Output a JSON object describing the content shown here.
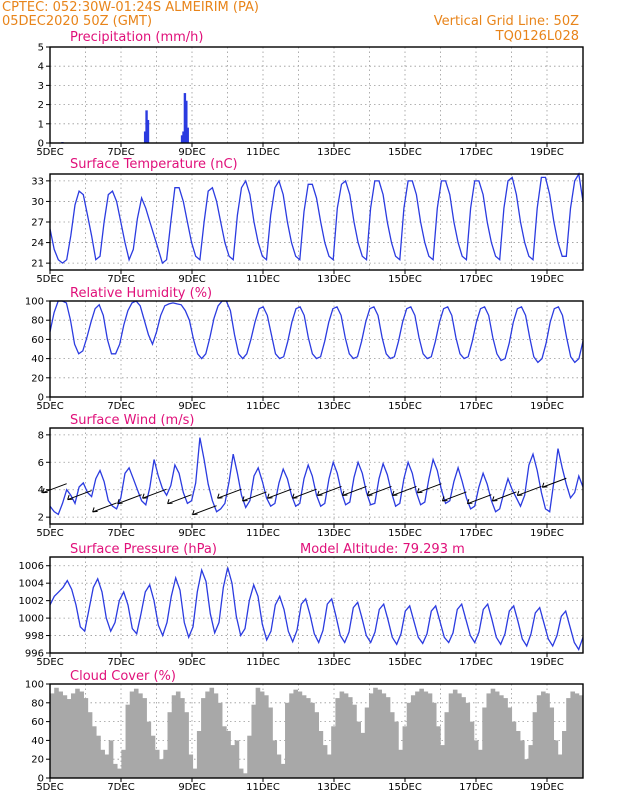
{
  "header": {
    "line1_left": "CPTEC:   052:30W-01:24S   ALMEIRIM (PA)",
    "line2_left": "05DEC2020 50Z (GMT)",
    "line1_right": "Vertical Grid Line: 50Z",
    "line2_right": "TQ0126L028"
  },
  "colors": {
    "header": "#e8841a",
    "panel_title": "#e0107a",
    "series_line": "#2b3be0",
    "cloud_fill": "#a8a8a8",
    "precip_bar": "#2b3be0",
    "wind_barb": "#000000"
  },
  "chart_data": [
    {
      "type": "bar",
      "title": "Precipitation (mm/h)",
      "x_labels": [
        "5DEC",
        "7DEC",
        "9DEC",
        "11DEC",
        "13DEC",
        "15DEC",
        "17DEC",
        "19DEC"
      ],
      "ylim": [
        0,
        5
      ],
      "yticks": [
        0,
        1,
        2,
        3,
        4,
        5
      ],
      "grid": true,
      "bars": [
        {
          "x": 0.35,
          "value": 0.05
        },
        {
          "x": 1.12,
          "value": 0.03
        },
        {
          "x": 2.68,
          "value": 0.6
        },
        {
          "x": 2.72,
          "value": 1.7
        },
        {
          "x": 2.76,
          "value": 1.2
        },
        {
          "x": 3.72,
          "value": 0.4
        },
        {
          "x": 3.76,
          "value": 0.6
        },
        {
          "x": 3.8,
          "value": 2.6
        },
        {
          "x": 3.84,
          "value": 2.2
        },
        {
          "x": 3.88,
          "value": 0.8
        }
      ]
    },
    {
      "type": "line",
      "title": "Surface Temperature (nC)",
      "x_labels": [
        "5DEC",
        "7DEC",
        "9DEC",
        "11DEC",
        "13DEC",
        "15DEC",
        "17DEC",
        "19DEC"
      ],
      "ylim": [
        20,
        34
      ],
      "yticks": [
        21,
        24,
        27,
        30,
        33
      ],
      "grid": true,
      "values": [
        26,
        23,
        21.5,
        21,
        21.5,
        25,
        29.5,
        31.5,
        31,
        28,
        25,
        21.5,
        22,
        27,
        31,
        31.5,
        30,
        27,
        24,
        21.5,
        23,
        27.5,
        30.5,
        29,
        27,
        25,
        23,
        21,
        21.5,
        27,
        32,
        32,
        30,
        27,
        24,
        22,
        21.5,
        27,
        31.5,
        32,
        30,
        27,
        24,
        22,
        21.5,
        28,
        32,
        33,
        31,
        27,
        24,
        22,
        21.5,
        28,
        32,
        33,
        31,
        27,
        24,
        22,
        21.5,
        28.5,
        32.5,
        32.5,
        30.5,
        27,
        24,
        22,
        21.5,
        29,
        32.5,
        33,
        31,
        27,
        24,
        22,
        21.5,
        29,
        33,
        33,
        31,
        27,
        24,
        22,
        21.5,
        29,
        33,
        33,
        31,
        27,
        24,
        22,
        21.5,
        29,
        33,
        33,
        31,
        27,
        24,
        22,
        21.5,
        29,
        33,
        33,
        31,
        27,
        24,
        22,
        21.5,
        29,
        33,
        33.5,
        31,
        27,
        24,
        22,
        21.5,
        29,
        33.5,
        33.5,
        31,
        27,
        24,
        22,
        22,
        29,
        33,
        34,
        30
      ]
    },
    {
      "type": "line",
      "title": "Relative Humidity (%)",
      "x_labels": [
        "5DEC",
        "7DEC",
        "9DEC",
        "11DEC",
        "13DEC",
        "15DEC",
        "17DEC",
        "19DEC"
      ],
      "ylim": [
        0,
        100
      ],
      "yticks": [
        0,
        20,
        40,
        60,
        80,
        100
      ],
      "grid": true,
      "values": [
        68,
        88,
        100,
        100,
        98,
        80,
        55,
        45,
        48,
        62,
        78,
        92,
        96,
        85,
        60,
        45,
        45,
        55,
        75,
        90,
        98,
        100,
        95,
        80,
        65,
        55,
        68,
        85,
        95,
        97,
        98,
        97,
        96,
        90,
        80,
        60,
        45,
        40,
        45,
        62,
        82,
        95,
        100,
        100,
        90,
        65,
        45,
        40,
        45,
        60,
        78,
        92,
        94,
        85,
        65,
        45,
        40,
        42,
        58,
        78,
        92,
        94,
        85,
        62,
        45,
        40,
        42,
        58,
        78,
        92,
        94,
        85,
        62,
        45,
        40,
        42,
        58,
        78,
        92,
        94,
        85,
        62,
        45,
        40,
        42,
        58,
        78,
        92,
        94,
        85,
        62,
        45,
        40,
        42,
        58,
        78,
        92,
        94,
        85,
        62,
        45,
        40,
        42,
        58,
        78,
        92,
        94,
        85,
        62,
        45,
        38,
        40,
        56,
        78,
        92,
        94,
        85,
        62,
        42,
        36,
        40,
        56,
        78,
        92,
        94,
        85,
        62,
        42,
        36,
        40,
        58
      ]
    },
    {
      "type": "line",
      "title": "Surface Wind (m/s)",
      "x_labels": [
        "5DEC",
        "7DEC",
        "9DEC",
        "11DEC",
        "13DEC",
        "15DEC",
        "17DEC",
        "19DEC"
      ],
      "ylim": [
        1.5,
        8.5
      ],
      "yticks": [
        2,
        4,
        6,
        8
      ],
      "grid": true,
      "values": [
        2.8,
        2.4,
        2.2,
        3.0,
        4.0,
        3.6,
        3.0,
        4.2,
        4.5,
        3.8,
        3.5,
        4.8,
        5.4,
        4.6,
        3.2,
        2.8,
        2.6,
        3.4,
        5.2,
        5.6,
        4.8,
        4.0,
        3.2,
        2.9,
        4.2,
        6.2,
        5.0,
        4.1,
        3.6,
        4.3,
        5.8,
        5.2,
        3.8,
        3.0,
        3.2,
        4.5,
        7.8,
        6.2,
        4.4,
        3.2,
        2.4,
        2.6,
        3.0,
        4.6,
        6.6,
        5.2,
        3.6,
        2.7,
        3.2,
        5.0,
        5.6,
        4.6,
        3.4,
        2.8,
        3.0,
        4.5,
        5.5,
        4.8,
        3.6,
        2.8,
        3.0,
        4.8,
        5.8,
        5.0,
        3.6,
        2.8,
        3.0,
        4.8,
        6.0,
        5.2,
        3.8,
        2.9,
        3.1,
        4.9,
        6.0,
        5.2,
        3.8,
        2.9,
        3.0,
        4.8,
        5.9,
        5.1,
        3.8,
        2.8,
        3.0,
        4.8,
        6.0,
        5.2,
        3.8,
        2.9,
        3.1,
        4.8,
        6.2,
        5.4,
        4.0,
        3.0,
        3.2,
        4.6,
        5.6,
        4.6,
        3.4,
        2.6,
        2.8,
        4.2,
        5.2,
        4.4,
        3.2,
        2.4,
        2.6,
        3.8,
        4.8,
        4.0,
        3.4,
        2.8,
        3.6,
        5.8,
        6.6,
        5.4,
        3.8,
        2.6,
        2.4,
        4.6,
        7.0,
        5.6,
        4.4,
        3.4,
        3.8,
        5.0,
        4.2
      ]
    },
    {
      "type": "line",
      "title": "Surface Pressure (hPa)",
      "annotation": "Model Altitude: 79.293 m",
      "x_labels": [
        "5DEC",
        "7DEC",
        "9DEC",
        "11DEC",
        "13DEC",
        "15DEC",
        "17DEC",
        "19DEC"
      ],
      "ylim": [
        996,
        1007
      ],
      "yticks": [
        996,
        998,
        1000,
        1002,
        1004,
        1006
      ],
      "grid": true,
      "values": [
        1001.5,
        1002.5,
        1003,
        1003.5,
        1004.3,
        1003.3,
        1001.5,
        999,
        998.5,
        1001,
        1003.5,
        1004.5,
        1003,
        1000,
        998.5,
        999.5,
        1002,
        1003,
        1001.5,
        998.8,
        998.2,
        1000.5,
        1003,
        1003.8,
        1002,
        999.2,
        998,
        999.5,
        1002.5,
        1004.6,
        1003.2,
        999.5,
        997.8,
        999,
        1003,
        1005.5,
        1004.2,
        1000.5,
        998.3,
        999.5,
        1003.5,
        1005.8,
        1004,
        1000.2,
        998,
        998.8,
        1002,
        1003.8,
        1002.5,
        999.3,
        997.5,
        998.5,
        1001.5,
        1002.5,
        1001,
        998.5,
        997.3,
        998.6,
        1001.6,
        1002.2,
        1000.4,
        998.2,
        997.2,
        998.6,
        1001.6,
        1002.2,
        1000.2,
        998,
        997.2,
        998.4,
        1001.2,
        1001.8,
        1000,
        998,
        997.2,
        998.4,
        1001,
        1001.6,
        999.8,
        997.8,
        997,
        998.2,
        1000.8,
        1001.4,
        999.6,
        997.8,
        997.1,
        998.2,
        1000.8,
        1001.4,
        999.6,
        997.8,
        997.2,
        998.3,
        1001,
        1001.6,
        999.8,
        998,
        997.2,
        998.4,
        1001,
        1001.6,
        999.8,
        997.8,
        997,
        998.2,
        1000.8,
        1001.4,
        999.6,
        997.6,
        996.8,
        998.2,
        1000.6,
        1001.2,
        999.4,
        997.6,
        996.8,
        998,
        1000.2,
        1000.8,
        999,
        997.2,
        996.4,
        997.8
      ]
    },
    {
      "type": "area",
      "title": "Cloud Cover (%)",
      "x_labels": [
        "5DEC",
        "7DEC",
        "9DEC",
        "11DEC",
        "13DEC",
        "15DEC",
        "17DEC",
        "19DEC"
      ],
      "ylim": [
        0,
        100
      ],
      "yticks": [
        0,
        20,
        40,
        60,
        80,
        100
      ],
      "grid": true,
      "values": [
        90,
        96,
        92,
        88,
        84,
        90,
        95,
        92,
        85,
        70,
        55,
        45,
        30,
        25,
        40,
        15,
        10,
        30,
        78,
        92,
        95,
        90,
        85,
        60,
        45,
        30,
        20,
        30,
        70,
        88,
        92,
        85,
        70,
        25,
        10,
        50,
        85,
        92,
        96,
        90,
        80,
        55,
        50,
        35,
        40,
        10,
        5,
        45,
        78,
        96,
        92,
        88,
        75,
        40,
        25,
        15,
        80,
        90,
        94,
        92,
        88,
        85,
        80,
        70,
        50,
        35,
        25,
        55,
        85,
        92,
        90,
        86,
        78,
        60,
        48,
        75,
        90,
        96,
        94,
        90,
        86,
        70,
        60,
        30,
        55,
        80,
        88,
        92,
        95,
        92,
        90,
        80,
        55,
        35,
        70,
        90,
        94,
        90,
        86,
        80,
        60,
        40,
        30,
        75,
        90,
        95,
        92,
        88,
        85,
        75,
        60,
        50,
        40,
        20,
        35,
        70,
        88,
        92,
        90,
        75,
        40,
        25,
        50,
        85,
        92,
        90,
        88
      ]
    }
  ]
}
